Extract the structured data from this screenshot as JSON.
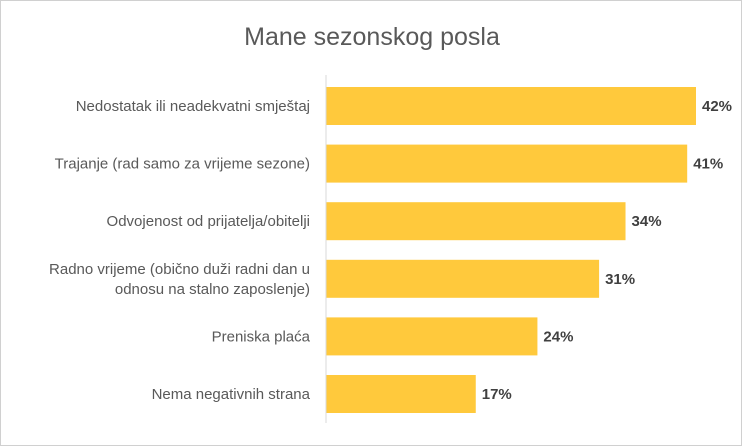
{
  "chart_data": {
    "type": "bar",
    "orientation": "horizontal",
    "title": "Mane sezonskog  posla",
    "categories": [
      [
        "Nedostatak ili neadekvatni smještaj"
      ],
      [
        "Trajanje (rad samo za vrijeme sezone)"
      ],
      [
        "Odvojenost od prijatelja/obitelji"
      ],
      [
        "Radno vrijeme (obično duži radni dan u",
        "odnosu na stalno zaposlenje)"
      ],
      [
        "Preniska plaća"
      ],
      [
        "Nema negativnih strana"
      ]
    ],
    "values": [
      42,
      41,
      34,
      31,
      24,
      17
    ],
    "data_labels": [
      "42%",
      "41%",
      "34%",
      "31%",
      "24%",
      "17%"
    ],
    "unit": "%",
    "xlim": [
      0,
      42
    ],
    "grid": false,
    "legend": "none",
    "bar_color": "#FFC93C",
    "axis_color": "#D9D9D9"
  }
}
